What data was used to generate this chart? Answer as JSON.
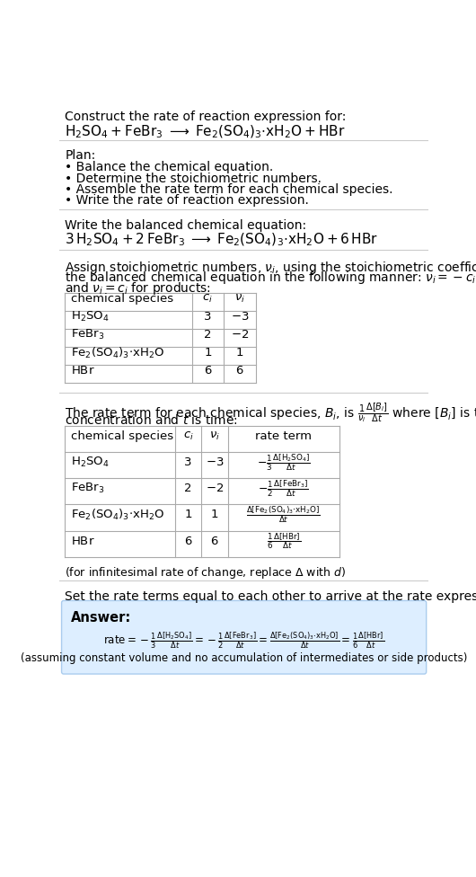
{
  "bg_color": "#ffffff",
  "text_color": "#000000",
  "title_line1": "Construct the rate of reaction expression for:",
  "plan_header": "Plan:",
  "plan_items": [
    "• Balance the chemical equation.",
    "• Determine the stoichiometric numbers.",
    "• Assemble the rate term for each chemical species.",
    "• Write the rate of reaction expression."
  ],
  "balanced_header": "Write the balanced chemical equation:",
  "stoich_line1": "Assign stoichiometric numbers, $\\nu_i$, using the stoichiometric coefficients, $c_i$, from",
  "stoich_line2": "the balanced chemical equation in the following manner: $\\nu_i = -c_i$ for reactants",
  "stoich_line3": "and $\\nu_i = c_i$ for products:",
  "rate_intro_line1": "The rate term for each chemical species, $B_i$, is $\\frac{1}{\\nu_i}\\frac{\\Delta[B_i]}{\\Delta t}$ where $[B_i]$ is the amount",
  "rate_intro_line2": "concentration and $t$ is time:",
  "infinitesimal_note": "(for infinitesimal rate of change, replace Δ with $d$)",
  "set_equal_header": "Set the rate terms equal to each other to arrive at the rate expression:",
  "answer_label": "Answer:",
  "answer_note": "(assuming constant volume and no accumulation of intermediates or side products)",
  "answer_box_color": "#ddeeff",
  "answer_box_edge": "#aaccee",
  "separator_color": "#cccccc",
  "table_line_color": "#aaaaaa"
}
